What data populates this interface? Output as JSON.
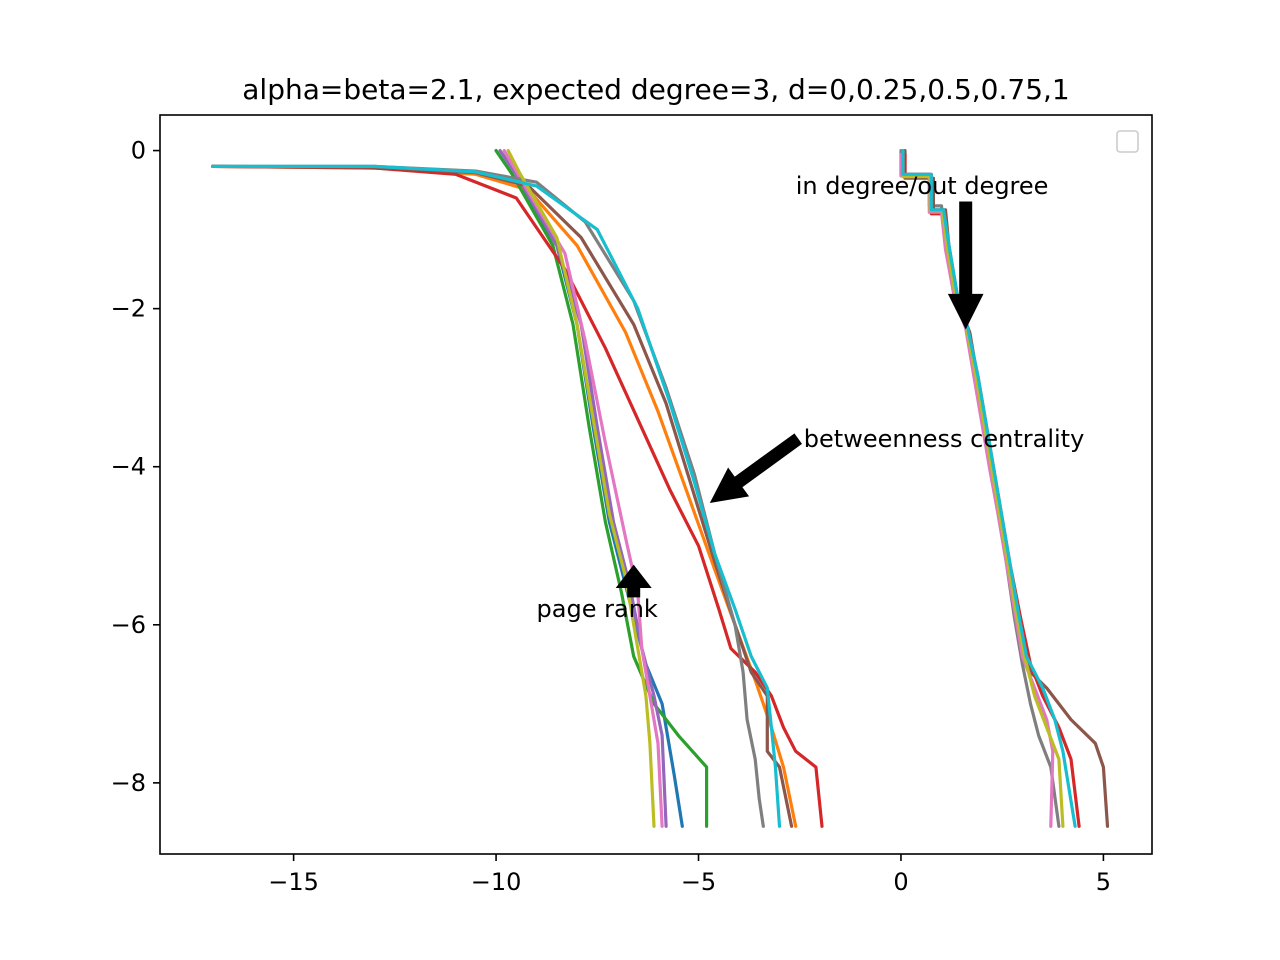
{
  "chart_data": {
    "type": "line",
    "title": "alpha=beta=2.1, expected degree=3, d=0,0.25,0.5,0.75,1",
    "xlabel": "",
    "ylabel": "",
    "xlim": [
      -18.3,
      6.2
    ],
    "ylim": [
      -8.9,
      0.45
    ],
    "xticks": [
      -15,
      -10,
      -5,
      0,
      5
    ],
    "yticks": [
      0,
      -2,
      -4,
      -6,
      -8
    ],
    "xtick_labels": [
      "−15",
      "−10",
      "−5",
      "0",
      "5"
    ],
    "ytick_labels": [
      "0",
      "−2",
      "−4",
      "−6",
      "−8"
    ],
    "grid": false,
    "legend": {
      "placement": "top-right",
      "entries": []
    },
    "colors": [
      "#1f77b4",
      "#ff7f0e",
      "#2ca02c",
      "#d62728",
      "#9467bd",
      "#8c564b",
      "#e377c2",
      "#7f7f7f",
      "#bcbd22",
      "#17becf"
    ],
    "annotations": [
      {
        "text": "in degree/out degree",
        "text_at": [
          -2.6,
          -0.55
        ],
        "arrow_to": [
          1.6,
          -2.25
        ]
      },
      {
        "text": "betweenness centrality",
        "text_at": [
          -2.4,
          -3.75
        ],
        "arrow_to": [
          -4.7,
          -4.45
        ]
      },
      {
        "text": "page rank",
        "text_at": [
          -9.0,
          -5.9
        ],
        "arrow_to": [
          -6.6,
          -5.25
        ]
      }
    ],
    "series": [
      {
        "color": "#1f77b4",
        "points": [
          [
            -10,
            0
          ],
          [
            -9.6,
            -0.3
          ],
          [
            -8.5,
            -1.2
          ],
          [
            -8,
            -2.2
          ],
          [
            -7.6,
            -3.5
          ],
          [
            -7.2,
            -4.7
          ],
          [
            -6.8,
            -5.5
          ],
          [
            -6.3,
            -6.5
          ],
          [
            -5.9,
            -7
          ],
          [
            -5.6,
            -7.9
          ],
          [
            -5.4,
            -8.55
          ]
        ]
      },
      {
        "color": "#ff7f0e",
        "points": [
          [
            -17,
            -0.2
          ],
          [
            -13,
            -0.22
          ],
          [
            -10.5,
            -0.3
          ],
          [
            -9.2,
            -0.5
          ],
          [
            -8,
            -1.2
          ],
          [
            -6.8,
            -2.3
          ],
          [
            -6,
            -3.3
          ],
          [
            -5.3,
            -4.3
          ],
          [
            -4.6,
            -5.3
          ],
          [
            -4.1,
            -6
          ],
          [
            -3.6,
            -6.7
          ],
          [
            -3.2,
            -7.3
          ],
          [
            -2.9,
            -7.8
          ],
          [
            -2.6,
            -8.55
          ]
        ]
      },
      {
        "color": "#2ca02c",
        "points": [
          [
            -10,
            0
          ],
          [
            -9.6,
            -0.3
          ],
          [
            -8.6,
            -1.2
          ],
          [
            -8.1,
            -2.2
          ],
          [
            -7.7,
            -3.5
          ],
          [
            -7.3,
            -4.7
          ],
          [
            -6.9,
            -5.6
          ],
          [
            -6.6,
            -6.4
          ],
          [
            -6.1,
            -7
          ],
          [
            -5.5,
            -7.4
          ],
          [
            -4.8,
            -7.8
          ],
          [
            -4.8,
            -8.55
          ]
        ]
      },
      {
        "color": "#d62728",
        "points": [
          [
            -17,
            -0.2
          ],
          [
            -13,
            -0.22
          ],
          [
            -11,
            -0.3
          ],
          [
            -9.5,
            -0.6
          ],
          [
            -8.3,
            -1.5
          ],
          [
            -7.3,
            -2.5
          ],
          [
            -6.5,
            -3.4
          ],
          [
            -5.7,
            -4.3
          ],
          [
            -5,
            -5
          ],
          [
            -4.5,
            -5.8
          ],
          [
            -4.2,
            -6.3
          ],
          [
            -3.6,
            -6.6
          ],
          [
            -3.2,
            -6.9
          ],
          [
            -2.9,
            -7.3
          ],
          [
            -2.6,
            -7.6
          ],
          [
            -2.1,
            -7.8
          ],
          [
            -1.95,
            -8.55
          ]
        ]
      },
      {
        "color": "#9467bd",
        "points": [
          [
            -9.9,
            0
          ],
          [
            -9.5,
            -0.3
          ],
          [
            -8.5,
            -1.2
          ],
          [
            -7.9,
            -2.2
          ],
          [
            -7.5,
            -3.5
          ],
          [
            -7.1,
            -4.7
          ],
          [
            -6.7,
            -5.5
          ],
          [
            -6.4,
            -6.3
          ],
          [
            -6.1,
            -6.9
          ],
          [
            -5.9,
            -7.4
          ],
          [
            -5.8,
            -8.55
          ]
        ]
      },
      {
        "color": "#8c564b",
        "points": [
          [
            -17,
            -0.2
          ],
          [
            -13,
            -0.21
          ],
          [
            -10.5,
            -0.28
          ],
          [
            -9.2,
            -0.45
          ],
          [
            -7.9,
            -1.1
          ],
          [
            -6.6,
            -2.2
          ],
          [
            -5.8,
            -3.2
          ],
          [
            -5.2,
            -4.2
          ],
          [
            -4.6,
            -5.2
          ],
          [
            -4.1,
            -6
          ],
          [
            -3.7,
            -6.6
          ],
          [
            -3.3,
            -6.9
          ],
          [
            -3.3,
            -7.6
          ],
          [
            -3,
            -7.8
          ],
          [
            -2.7,
            -8.55
          ]
        ]
      },
      {
        "color": "#e377c2",
        "points": [
          [
            -9.8,
            0
          ],
          [
            -9.4,
            -0.35
          ],
          [
            -8.3,
            -1.3
          ],
          [
            -7.8,
            -2.4
          ],
          [
            -7.3,
            -3.7
          ],
          [
            -6.8,
            -4.9
          ],
          [
            -6.5,
            -5.6
          ],
          [
            -6.4,
            -6.3
          ],
          [
            -6.2,
            -6.9
          ],
          [
            -6,
            -7.5
          ],
          [
            -5.9,
            -8.55
          ]
        ]
      },
      {
        "color": "#7f7f7f",
        "points": [
          [
            -17,
            -0.2
          ],
          [
            -13,
            -0.2
          ],
          [
            -10.5,
            -0.26
          ],
          [
            -9,
            -0.4
          ],
          [
            -7.8,
            -0.9
          ],
          [
            -6.6,
            -1.9
          ],
          [
            -5.8,
            -3
          ],
          [
            -5.1,
            -4.1
          ],
          [
            -4.6,
            -5.1
          ],
          [
            -4.1,
            -6
          ],
          [
            -3.9,
            -6.6
          ],
          [
            -3.8,
            -7.2
          ],
          [
            -3.6,
            -7.7
          ],
          [
            -3.5,
            -8.2
          ],
          [
            -3.4,
            -8.55
          ]
        ]
      },
      {
        "color": "#bcbd22",
        "points": [
          [
            -9.7,
            0
          ],
          [
            -9.4,
            -0.3
          ],
          [
            -8.5,
            -1.1
          ],
          [
            -8,
            -2.2
          ],
          [
            -7.6,
            -3.4
          ],
          [
            -7.2,
            -4.6
          ],
          [
            -6.8,
            -5.4
          ],
          [
            -6.5,
            -6.3
          ],
          [
            -6.3,
            -6.9
          ],
          [
            -6.2,
            -7.5
          ],
          [
            -6.1,
            -8.55
          ]
        ]
      },
      {
        "color": "#17becf",
        "points": [
          [
            -17,
            -0.2
          ],
          [
            -13,
            -0.2
          ],
          [
            -10.5,
            -0.27
          ],
          [
            -9,
            -0.45
          ],
          [
            -7.5,
            -1
          ],
          [
            -6.5,
            -2
          ],
          [
            -5.7,
            -3.2
          ],
          [
            -5.1,
            -4.2
          ],
          [
            -4.6,
            -5.1
          ],
          [
            -4.1,
            -5.8
          ],
          [
            -3.7,
            -6.4
          ],
          [
            -3.3,
            -6.8
          ],
          [
            -3.2,
            -7.3
          ],
          [
            -3.1,
            -7.8
          ],
          [
            -3,
            -8.55
          ]
        ]
      },
      {
        "color": "#7f7f7f",
        "points": [
          [
            0,
            0
          ],
          [
            0,
            -0.3
          ],
          [
            0.7,
            -0.3
          ],
          [
            0.7,
            -0.7
          ],
          [
            1,
            -0.7
          ],
          [
            1.1,
            -1.2
          ],
          [
            1.3,
            -1.8
          ],
          [
            1.6,
            -2.2
          ],
          [
            1.8,
            -2.8
          ],
          [
            2,
            -3.4
          ],
          [
            2.2,
            -4
          ],
          [
            2.4,
            -4.6
          ],
          [
            2.6,
            -5.2
          ],
          [
            2.8,
            -5.9
          ],
          [
            3,
            -6.5
          ],
          [
            3.2,
            -7
          ],
          [
            3.4,
            -7.4
          ],
          [
            3.7,
            -7.8
          ],
          [
            3.9,
            -8.55
          ]
        ]
      },
      {
        "color": "#8c564b",
        "points": [
          [
            0.1,
            0
          ],
          [
            0.1,
            -0.35
          ],
          [
            0.8,
            -0.35
          ],
          [
            0.8,
            -0.75
          ],
          [
            1.1,
            -0.75
          ],
          [
            1.2,
            -1.3
          ],
          [
            1.4,
            -1.9
          ],
          [
            1.7,
            -2.3
          ],
          [
            1.9,
            -2.9
          ],
          [
            2.1,
            -3.5
          ],
          [
            2.3,
            -4.1
          ],
          [
            2.5,
            -4.7
          ],
          [
            2.7,
            -5.3
          ],
          [
            2.9,
            -5.9
          ],
          [
            3.2,
            -6.6
          ],
          [
            3.6,
            -6.8
          ],
          [
            4.2,
            -7.2
          ],
          [
            4.8,
            -7.5
          ],
          [
            5,
            -7.8
          ],
          [
            5.1,
            -8.55
          ]
        ]
      },
      {
        "color": "#d62728",
        "points": [
          [
            0.1,
            -0.05
          ],
          [
            0.1,
            -0.3
          ],
          [
            0.75,
            -0.3
          ],
          [
            0.75,
            -0.8
          ],
          [
            1.05,
            -0.8
          ],
          [
            1.2,
            -1.25
          ],
          [
            1.4,
            -1.85
          ],
          [
            1.65,
            -2.25
          ],
          [
            1.9,
            -2.85
          ],
          [
            2.1,
            -3.45
          ],
          [
            2.3,
            -4.05
          ],
          [
            2.5,
            -4.65
          ],
          [
            2.7,
            -5.25
          ],
          [
            2.95,
            -5.9
          ],
          [
            3.2,
            -6.5
          ],
          [
            3.5,
            -6.9
          ],
          [
            3.9,
            -7.3
          ],
          [
            4.2,
            -7.7
          ],
          [
            4.4,
            -8.55
          ]
        ]
      },
      {
        "color": "#e377c2",
        "points": [
          [
            0,
            -0.05
          ],
          [
            0,
            -0.32
          ],
          [
            0.7,
            -0.32
          ],
          [
            0.7,
            -0.78
          ],
          [
            1,
            -0.78
          ],
          [
            1.1,
            -1.25
          ],
          [
            1.3,
            -1.8
          ],
          [
            1.6,
            -2.25
          ],
          [
            1.8,
            -2.85
          ],
          [
            2,
            -3.45
          ],
          [
            2.2,
            -4.05
          ],
          [
            2.4,
            -4.6
          ],
          [
            2.6,
            -5.2
          ],
          [
            2.8,
            -5.8
          ],
          [
            3,
            -6.4
          ],
          [
            3.3,
            -6.8
          ],
          [
            3.6,
            -7.2
          ],
          [
            3.75,
            -7.6
          ],
          [
            3.7,
            -8.55
          ]
        ]
      },
      {
        "color": "#bcbd22",
        "points": [
          [
            0.05,
            -0.05
          ],
          [
            0.05,
            -0.33
          ],
          [
            0.72,
            -0.33
          ],
          [
            0.72,
            -0.76
          ],
          [
            1.02,
            -0.76
          ],
          [
            1.15,
            -1.25
          ],
          [
            1.35,
            -1.85
          ],
          [
            1.62,
            -2.25
          ],
          [
            1.85,
            -2.85
          ],
          [
            2.05,
            -3.45
          ],
          [
            2.25,
            -4.05
          ],
          [
            2.45,
            -4.65
          ],
          [
            2.65,
            -5.25
          ],
          [
            2.85,
            -5.85
          ],
          [
            3.05,
            -6.4
          ],
          [
            3.3,
            -6.9
          ],
          [
            3.6,
            -7.3
          ],
          [
            3.9,
            -7.7
          ],
          [
            4,
            -8.55
          ]
        ]
      },
      {
        "color": "#17becf",
        "points": [
          [
            0.05,
            0
          ],
          [
            0.05,
            -0.3
          ],
          [
            0.75,
            -0.3
          ],
          [
            0.75,
            -0.75
          ],
          [
            1.05,
            -0.75
          ],
          [
            1.2,
            -1.25
          ],
          [
            1.4,
            -1.85
          ],
          [
            1.65,
            -2.25
          ],
          [
            1.9,
            -2.85
          ],
          [
            2.1,
            -3.45
          ],
          [
            2.3,
            -4.05
          ],
          [
            2.5,
            -4.65
          ],
          [
            2.7,
            -5.25
          ],
          [
            2.9,
            -5.85
          ],
          [
            3.1,
            -6.4
          ],
          [
            3.5,
            -6.8
          ],
          [
            3.8,
            -7.2
          ],
          [
            4,
            -7.6
          ],
          [
            4.3,
            -8.55
          ]
        ]
      }
    ]
  }
}
